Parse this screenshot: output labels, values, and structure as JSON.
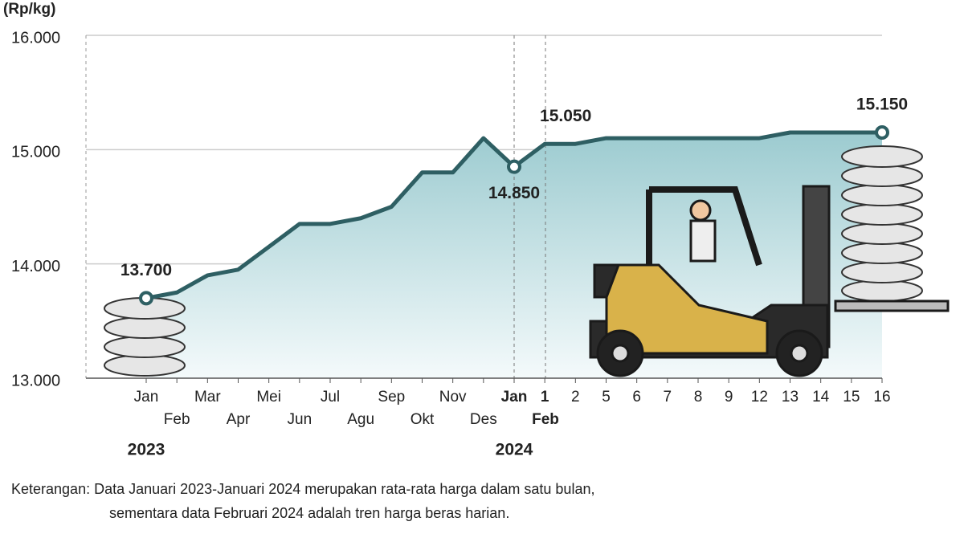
{
  "chart_data": {
    "type": "area",
    "y_label": "(Rp/kg)",
    "categories": [
      "Jan",
      "Feb",
      "Mar",
      "Apr",
      "Mei",
      "Jun",
      "Jul",
      "Agu",
      "Sep",
      "Okt",
      "Nov",
      "Des",
      "Jan",
      "1",
      "2",
      "5",
      "6",
      "7",
      "8",
      "9",
      "12",
      "13",
      "14",
      "15",
      "16"
    ],
    "period_labels": [
      "2023",
      "2024",
      "Feb"
    ],
    "series": [
      {
        "color": "#2e5f63",
        "values": [
          13700,
          13750,
          13900,
          13950,
          14150,
          14350,
          14350,
          14400,
          14500,
          14800,
          14800,
          15100,
          14850,
          15050,
          15050,
          15100,
          15100,
          15100,
          15100,
          15100,
          15100,
          15150,
          15150,
          15150,
          15150
        ],
        "value_labels": [
          "13.700",
          null,
          null,
          null,
          null,
          null,
          null,
          null,
          null,
          null,
          null,
          null,
          "14.850",
          "15.050",
          null,
          null,
          null,
          null,
          null,
          null,
          null,
          null,
          null,
          null,
          "15.150"
        ]
      }
    ],
    "ylim": [
      13000,
      16000
    ],
    "yticks": [
      {
        "value": 13000,
        "label": "13.000"
      },
      {
        "value": 14000,
        "label": "14.000"
      },
      {
        "value": 15000,
        "label": "15.000"
      },
      {
        "value": 16000,
        "label": "16.000"
      }
    ],
    "grid": true,
    "note": [
      "Keterangan: Data Januari 2023-Januari 2024 merupakan rata-rata harga dalam satu bulan,",
      "sementara data Februari 2024 adalah tren harga beras harian."
    ]
  }
}
